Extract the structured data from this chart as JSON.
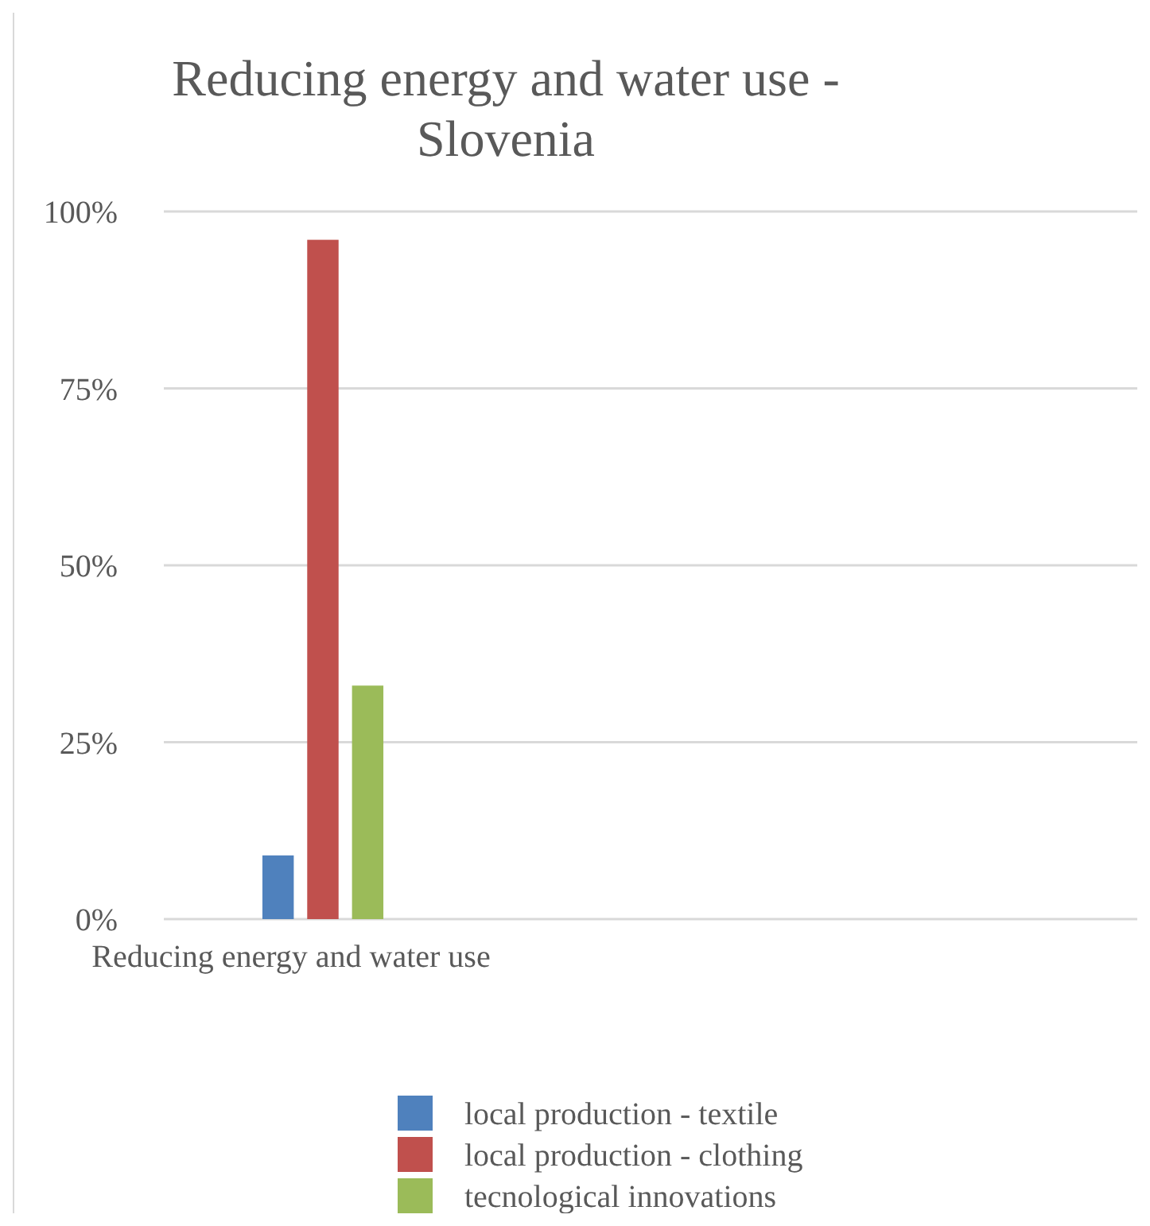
{
  "chart_data": {
    "type": "bar",
    "title": "Reducing energy and water use - Slovenia",
    "categories": [
      "Reducing energy and water use"
    ],
    "series": [
      {
        "name": "local production - textile",
        "color": "#4f81bd",
        "values": [
          9
        ]
      },
      {
        "name": "local production - clothing",
        "color": "#c0504d",
        "values": [
          96
        ]
      },
      {
        "name": "tecnological innovations",
        "color": "#9bbb59",
        "values": [
          33
        ]
      }
    ],
    "ylim": [
      0,
      100
    ],
    "yticks": [
      {
        "value": 0,
        "label": "0%"
      },
      {
        "value": 25,
        "label": "25%"
      },
      {
        "value": 50,
        "label": "50%"
      },
      {
        "value": 75,
        "label": "75%"
      },
      {
        "value": 100,
        "label": "100%"
      }
    ],
    "grid": "y",
    "legend": "bottom"
  }
}
